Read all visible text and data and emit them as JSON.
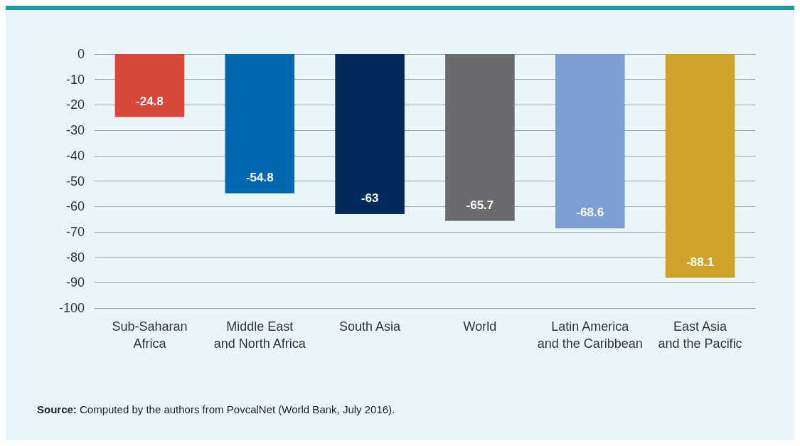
{
  "chart_data": {
    "type": "bar",
    "categories": [
      "Sub-Saharan\nAfrica",
      "Middle East\nand North Africa",
      "South Asia",
      "World",
      "Latin America\nand the Caribbean",
      "East Asia\nand the Pacific"
    ],
    "values": [
      -24.8,
      -54.8,
      -63,
      -65.7,
      -68.6,
      -88.1
    ],
    "colors": [
      "#d9463a",
      "#0068b0",
      "#002b5c",
      "#6b6b6e",
      "#7b9fd3",
      "#cfa22a"
    ],
    "ylim": [
      -100,
      0
    ],
    "yticks": [
      0,
      -10,
      -20,
      -30,
      -40,
      -50,
      -60,
      -70,
      -80,
      -90,
      -100
    ],
    "grid": "y",
    "data_labels": true,
    "annotations": [
      "Source: Computed by the authors from PovcalNet (World Bank, July 2016)."
    ]
  }
}
